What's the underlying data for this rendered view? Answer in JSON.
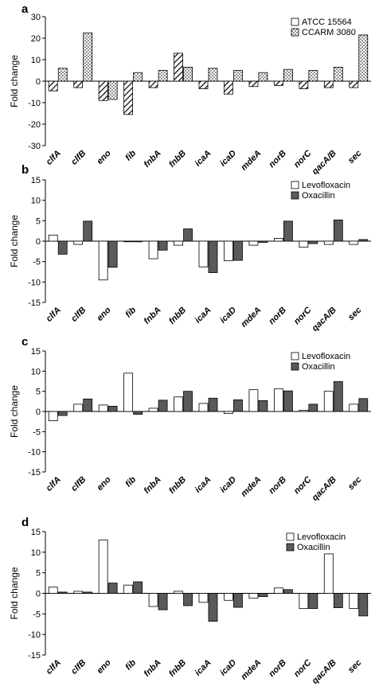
{
  "chart_data": [
    {
      "type": "bar",
      "panel_letter": "a",
      "ylabel": "Fold change",
      "ylim": [
        -30,
        30
      ],
      "yticks": [
        -30,
        -20,
        -10,
        0,
        10,
        20,
        30
      ],
      "legend_position": "top-right",
      "categories": [
        "clfA",
        "clfB",
        "eno",
        "fib",
        "fnbA",
        "fnbB",
        "icaA",
        "icaD",
        "mdeA",
        "norB",
        "norC",
        "qacA/B",
        "sec"
      ],
      "series": [
        {
          "name": "ATCC 15564",
          "pattern": "hatch",
          "values": [
            -4.5,
            -3,
            -9,
            -15.5,
            -3,
            13,
            -3.5,
            -6,
            -2.5,
            -2,
            -3.5,
            -3,
            -3
          ]
        },
        {
          "name": "CCARM 3080",
          "pattern": "dots",
          "values": [
            6,
            22.5,
            -8.5,
            4,
            5,
            6.5,
            6,
            5,
            4,
            5.5,
            5,
            6.5,
            21.5
          ]
        }
      ]
    },
    {
      "type": "bar",
      "panel_letter": "b",
      "ylabel": "Fold change",
      "ylim": [
        -15,
        15
      ],
      "yticks": [
        -15,
        -10,
        -5,
        0,
        5,
        10,
        15
      ],
      "legend_position": "top-right",
      "categories": [
        "clfA",
        "clfB",
        "eno",
        "fib",
        "fnbA",
        "fnbB",
        "icaA",
        "icaD",
        "mdeA",
        "norB",
        "norC",
        "qacA/B",
        "sec"
      ],
      "series": [
        {
          "name": "Levofloxacin",
          "color": "#ffffff",
          "values": [
            1.5,
            -0.8,
            -9.5,
            -0.1,
            -4.3,
            -1,
            -6.3,
            -4.8,
            -1,
            0.7,
            -1.5,
            -0.8,
            -0.8
          ]
        },
        {
          "name": "Oxacillin",
          "color": "#5a5a5a",
          "values": [
            -3.2,
            4.9,
            -6.4,
            -0.1,
            -2.2,
            3,
            -7.7,
            -4.7,
            -0.3,
            4.9,
            -0.6,
            5.2,
            0.4
          ]
        }
      ]
    },
    {
      "type": "bar",
      "panel_letter": "c",
      "ylabel": "Fold change",
      "ylim": [
        -15,
        15
      ],
      "yticks": [
        -15,
        -10,
        -5,
        0,
        5,
        10,
        15
      ],
      "legend_position": "top-right",
      "categories": [
        "clfA",
        "clfB",
        "eno",
        "fib",
        "fnbA",
        "fnbB",
        "icaA",
        "icaD",
        "mdeA",
        "norB",
        "norC",
        "qacA/B",
        "sec"
      ],
      "series": [
        {
          "name": "Levofloxacin",
          "color": "#ffffff",
          "values": [
            -2.3,
            1.8,
            1.6,
            9.5,
            0.8,
            3.6,
            2,
            -0.5,
            5.4,
            5.6,
            0.3,
            5,
            1.8
          ]
        },
        {
          "name": "Oxacillin",
          "color": "#5a5a5a",
          "values": [
            -1,
            3.1,
            1.3,
            -0.7,
            2.8,
            5,
            3.3,
            2.9,
            2.7,
            5.1,
            1.8,
            7.4,
            3.2
          ]
        }
      ]
    },
    {
      "type": "bar",
      "panel_letter": "d",
      "ylabel": "Fold change",
      "ylim": [
        -15,
        15
      ],
      "yticks": [
        -15,
        -10,
        -5,
        0,
        5,
        10,
        15
      ],
      "legend_position": "top-right",
      "categories": [
        "clfA",
        "clfB",
        "eno",
        "fib",
        "fnbA",
        "fnbB",
        "icaA",
        "icaD",
        "mdeA",
        "norB",
        "norC",
        "qacA/B",
        "sec"
      ],
      "series": [
        {
          "name": "Levofloxacin",
          "color": "#ffffff",
          "values": [
            1.5,
            0.5,
            13,
            2,
            -3.2,
            0.5,
            -2.2,
            -1.7,
            -1.2,
            1.3,
            -3.7,
            9.6,
            -3.7
          ]
        },
        {
          "name": "Oxacillin",
          "color": "#5a5a5a",
          "values": [
            0.3,
            0.3,
            2.5,
            2.8,
            -4,
            -3,
            -6.8,
            -3.4,
            -0.8,
            0.9,
            -3.7,
            -3.5,
            -5.5
          ]
        }
      ]
    }
  ]
}
